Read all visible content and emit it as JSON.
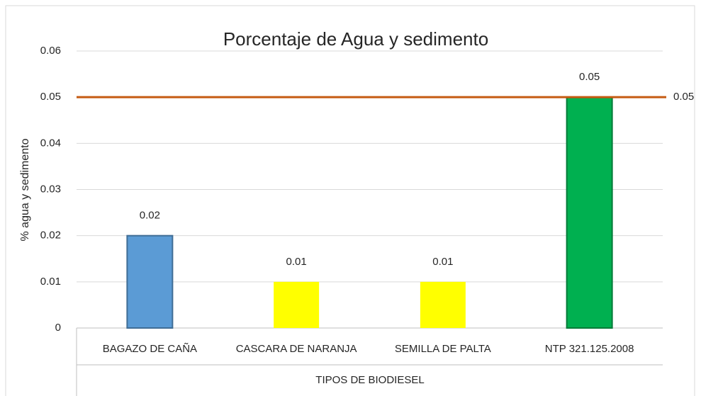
{
  "chart_data": {
    "type": "bar",
    "title": "Porcentaje de Agua y sedimento",
    "x_label": "TIPOS DE BIODIESEL",
    "y_label": "% agua y sedimento",
    "categories": [
      "BAGAZO DE CAÑA",
      "CASCARA DE NARANJA",
      "SEMILLA DE PALTA",
      "NTP 321.125.2008"
    ],
    "values": [
      0.02,
      0.01,
      0.01,
      0.05
    ],
    "colors": [
      "#5b9bd5",
      "#ffff00",
      "#ffff00",
      "#00b050"
    ],
    "ylim": [
      0,
      0.06
    ],
    "yticks": [
      0,
      0.01,
      0.02,
      0.03,
      0.04,
      0.05,
      0.06
    ],
    "grid": true,
    "reference_line": {
      "value": 0.05,
      "color": "#c55a11"
    }
  }
}
